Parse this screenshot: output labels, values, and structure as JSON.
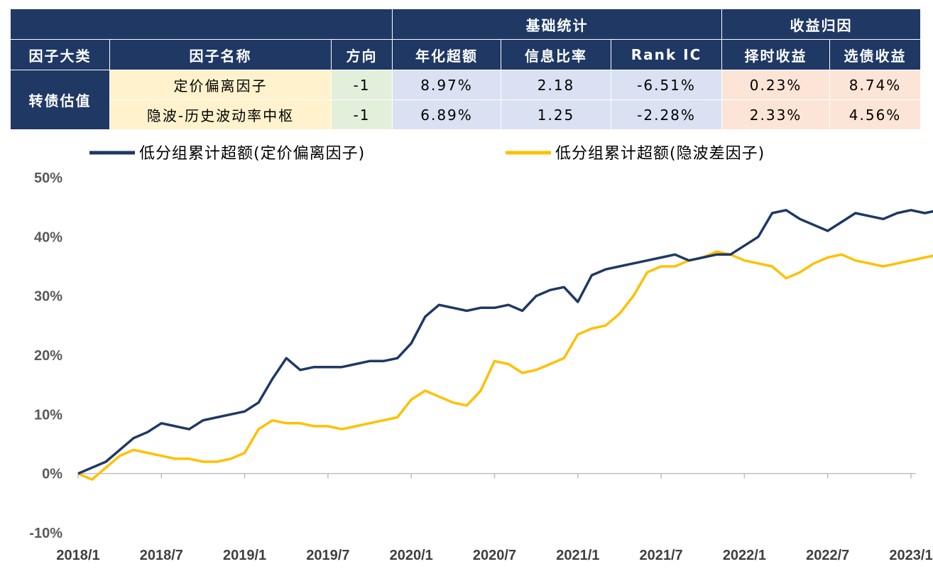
{
  "table": {
    "group_headers": {
      "basic": "基础统计",
      "attribution": "收益归因"
    },
    "columns": [
      "因子大类",
      "因子名称",
      "方向",
      "年化超额",
      "信息比率",
      "Rank IC",
      "择时收益",
      "选债收益"
    ],
    "category": "转债估值",
    "rows": [
      {
        "name": "定价偏离因子",
        "direction": "-1",
        "annual_excess": "8.97%",
        "info_ratio": "2.18",
        "rank_ic": "-6.51%",
        "timing": "0.23%",
        "selection": "8.74%"
      },
      {
        "name": "隐波-历史波动率中枢",
        "direction": "-1",
        "annual_excess": "6.89%",
        "info_ratio": "1.25",
        "rank_ic": "-2.28%",
        "timing": "2.33%",
        "selection": "4.56%"
      }
    ]
  },
  "colors": {
    "header_bg": "#1f3864",
    "series1": "#1f3864",
    "series2": "#ffc000"
  },
  "chart_data": {
    "type": "line",
    "legend_position": "top",
    "grid": false,
    "ylim": [
      -0.1,
      0.5
    ],
    "yticks": [
      "50%",
      "40%",
      "30%",
      "20%",
      "10%",
      "0%",
      "-10%"
    ],
    "yticks_values": [
      0.5,
      0.4,
      0.3,
      0.2,
      0.1,
      0.0,
      -0.1
    ],
    "xticks": [
      "2018/1",
      "2018/7",
      "2019/1",
      "2019/7",
      "2020/1",
      "2020/7",
      "2021/1",
      "2021/7",
      "2022/1",
      "2022/7",
      "2023/1"
    ],
    "series": [
      {
        "name": "低分组累计超额(定价偏离因子)",
        "points": [
          [
            "2018-01",
            0.0
          ],
          [
            "2018-02",
            0.01
          ],
          [
            "2018-03",
            0.02
          ],
          [
            "2018-04",
            0.04
          ],
          [
            "2018-05",
            0.06
          ],
          [
            "2018-06",
            0.07
          ],
          [
            "2018-07",
            0.085
          ],
          [
            "2018-08",
            0.08
          ],
          [
            "2018-09",
            0.075
          ],
          [
            "2018-10",
            0.09
          ],
          [
            "2018-11",
            0.095
          ],
          [
            "2018-12",
            0.1
          ],
          [
            "2019-01",
            0.105
          ],
          [
            "2019-02",
            0.12
          ],
          [
            "2019-03",
            0.16
          ],
          [
            "2019-04",
            0.195
          ],
          [
            "2019-05",
            0.175
          ],
          [
            "2019-06",
            0.18
          ],
          [
            "2019-07",
            0.18
          ],
          [
            "2019-08",
            0.18
          ],
          [
            "2019-09",
            0.185
          ],
          [
            "2019-10",
            0.19
          ],
          [
            "2019-11",
            0.19
          ],
          [
            "2019-12",
            0.195
          ],
          [
            "2020-01",
            0.22
          ],
          [
            "2020-02",
            0.265
          ],
          [
            "2020-03",
            0.285
          ],
          [
            "2020-04",
            0.28
          ],
          [
            "2020-05",
            0.275
          ],
          [
            "2020-06",
            0.28
          ],
          [
            "2020-07",
            0.28
          ],
          [
            "2020-08",
            0.285
          ],
          [
            "2020-09",
            0.275
          ],
          [
            "2020-10",
            0.3
          ],
          [
            "2020-11",
            0.31
          ],
          [
            "2020-12",
            0.315
          ],
          [
            "2021-01",
            0.29
          ],
          [
            "2021-02",
            0.335
          ],
          [
            "2021-03",
            0.345
          ],
          [
            "2021-04",
            0.35
          ],
          [
            "2021-05",
            0.355
          ],
          [
            "2021-06",
            0.36
          ],
          [
            "2021-07",
            0.365
          ],
          [
            "2021-08",
            0.37
          ],
          [
            "2021-09",
            0.36
          ],
          [
            "2021-10",
            0.365
          ],
          [
            "2021-11",
            0.37
          ],
          [
            "2021-12",
            0.37
          ],
          [
            "2022-01",
            0.385
          ],
          [
            "2022-02",
            0.4
          ],
          [
            "2022-03",
            0.44
          ],
          [
            "2022-04",
            0.445
          ],
          [
            "2022-05",
            0.43
          ],
          [
            "2022-06",
            0.42
          ],
          [
            "2022-07",
            0.41
          ],
          [
            "2022-08",
            0.425
          ],
          [
            "2022-09",
            0.44
          ],
          [
            "2022-10",
            0.435
          ],
          [
            "2022-11",
            0.43
          ],
          [
            "2022-12",
            0.44
          ],
          [
            "2023-01",
            0.445
          ],
          [
            "2023-02",
            0.44
          ],
          [
            "2023-03",
            0.445
          ]
        ]
      },
      {
        "name": "低分组累计超额(隐波差因子)",
        "points": [
          [
            "2018-01",
            0.0
          ],
          [
            "2018-02",
            -0.01
          ],
          [
            "2018-03",
            0.01
          ],
          [
            "2018-04",
            0.03
          ],
          [
            "2018-05",
            0.04
          ],
          [
            "2018-06",
            0.035
          ],
          [
            "2018-07",
            0.03
          ],
          [
            "2018-08",
            0.025
          ],
          [
            "2018-09",
            0.025
          ],
          [
            "2018-10",
            0.02
          ],
          [
            "2018-11",
            0.02
          ],
          [
            "2018-12",
            0.025
          ],
          [
            "2019-01",
            0.035
          ],
          [
            "2019-02",
            0.075
          ],
          [
            "2019-03",
            0.09
          ],
          [
            "2019-04",
            0.085
          ],
          [
            "2019-05",
            0.085
          ],
          [
            "2019-06",
            0.08
          ],
          [
            "2019-07",
            0.08
          ],
          [
            "2019-08",
            0.075
          ],
          [
            "2019-09",
            0.08
          ],
          [
            "2019-10",
            0.085
          ],
          [
            "2019-11",
            0.09
          ],
          [
            "2019-12",
            0.095
          ],
          [
            "2020-01",
            0.125
          ],
          [
            "2020-02",
            0.14
          ],
          [
            "2020-03",
            0.13
          ],
          [
            "2020-04",
            0.12
          ],
          [
            "2020-05",
            0.115
          ],
          [
            "2020-06",
            0.14
          ],
          [
            "2020-07",
            0.19
          ],
          [
            "2020-08",
            0.185
          ],
          [
            "2020-09",
            0.17
          ],
          [
            "2020-10",
            0.175
          ],
          [
            "2020-11",
            0.185
          ],
          [
            "2020-12",
            0.195
          ],
          [
            "2021-01",
            0.235
          ],
          [
            "2021-02",
            0.245
          ],
          [
            "2021-03",
            0.25
          ],
          [
            "2021-04",
            0.27
          ],
          [
            "2021-05",
            0.3
          ],
          [
            "2021-06",
            0.34
          ],
          [
            "2021-07",
            0.35
          ],
          [
            "2021-08",
            0.35
          ],
          [
            "2021-09",
            0.36
          ],
          [
            "2021-10",
            0.365
          ],
          [
            "2021-11",
            0.375
          ],
          [
            "2021-12",
            0.37
          ],
          [
            "2022-01",
            0.36
          ],
          [
            "2022-02",
            0.355
          ],
          [
            "2022-03",
            0.35
          ],
          [
            "2022-04",
            0.33
          ],
          [
            "2022-05",
            0.34
          ],
          [
            "2022-06",
            0.355
          ],
          [
            "2022-07",
            0.365
          ],
          [
            "2022-08",
            0.37
          ],
          [
            "2022-09",
            0.36
          ],
          [
            "2022-10",
            0.355
          ],
          [
            "2022-11",
            0.35
          ],
          [
            "2022-12",
            0.355
          ],
          [
            "2023-01",
            0.36
          ],
          [
            "2023-02",
            0.365
          ],
          [
            "2023-03",
            0.37
          ]
        ]
      }
    ]
  }
}
